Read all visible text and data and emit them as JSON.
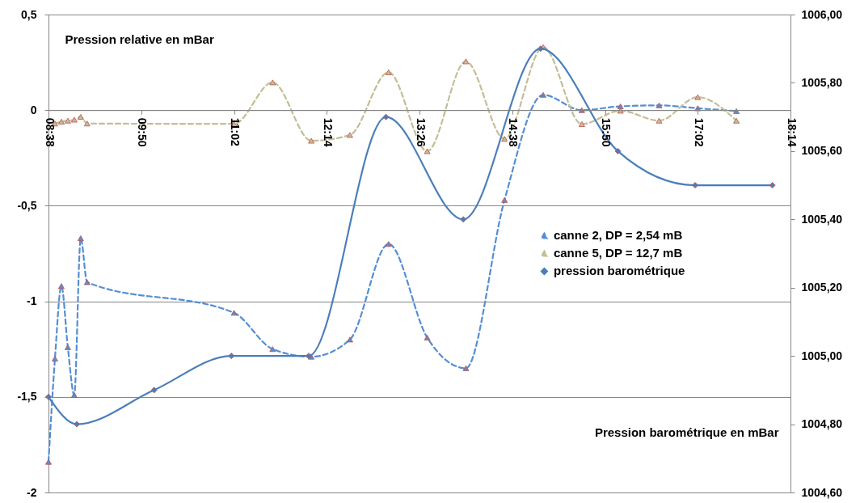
{
  "chart_data": {
    "type": "line",
    "ylabel": "Pression relative en mBar",
    "y2label": "Pression barométrique en mBar",
    "xlim": [
      8.6333,
      18.2333
    ],
    "xticks": [
      {
        "value": 8.6333,
        "label": "08:38"
      },
      {
        "value": 9.8333,
        "label": "09:50"
      },
      {
        "value": 11.0333,
        "label": "11:02"
      },
      {
        "value": 12.2333,
        "label": "12:14"
      },
      {
        "value": 13.4333,
        "label": "13:26"
      },
      {
        "value": 14.6333,
        "label": "14:38"
      },
      {
        "value": 15.8333,
        "label": "15:50"
      },
      {
        "value": 17.0333,
        "label": "17:02"
      },
      {
        "value": 18.2333,
        "label": "18:14"
      }
    ],
    "ylim": [
      -2,
      0.5
    ],
    "yticks": [
      {
        "value": -2,
        "label": "-2"
      },
      {
        "value": -1.5,
        "label": "-1,5"
      },
      {
        "value": -1,
        "label": "-1"
      },
      {
        "value": -0.5,
        "label": "-0,5"
      },
      {
        "value": 0,
        "label": "0"
      },
      {
        "value": 0.5,
        "label": "0,5"
      }
    ],
    "y2lim": [
      1004.6,
      1006.0
    ],
    "y2ticks": [
      {
        "value": 1004.6,
        "label": "1004,60"
      },
      {
        "value": 1004.8,
        "label": "1004,80"
      },
      {
        "value": 1005.0,
        "label": "1005,00"
      },
      {
        "value": 1005.2,
        "label": "1005,20"
      },
      {
        "value": 1005.4,
        "label": "1005,40"
      },
      {
        "value": 1005.6,
        "label": "1005,60"
      },
      {
        "value": 1005.8,
        "label": "1005,80"
      },
      {
        "value": 1006.0,
        "label": "1006,00"
      }
    ],
    "grid": "y",
    "legend": "right",
    "series": [
      {
        "name": "canne 2, DP = 2,54 mB",
        "color": "#558ed5",
        "marker": "triangle",
        "line_style": "dashed",
        "x": [
          8.6333,
          8.7167,
          8.8,
          8.8833,
          8.9667,
          9.05,
          9.1333,
          11.0333,
          11.5333,
          12.0333,
          12.5333,
          13.0333,
          13.5333,
          14.0333,
          14.5333,
          15.0333,
          15.5333,
          16.0333,
          16.5333,
          17.0333,
          17.5333
        ],
        "values": [
          -1.84,
          -1.3,
          -0.92,
          -1.24,
          -1.49,
          -0.67,
          -0.9,
          -1.06,
          -1.25,
          -1.29,
          -1.2,
          -0.7,
          -1.19,
          -1.35,
          -0.47,
          0.08,
          0.0,
          0.02,
          0.025,
          0.01,
          -0.005
        ]
      },
      {
        "name": "canne 5, DP = 12,7 mB",
        "color": "#c4bd97",
        "marker": "triangle",
        "line_style": "dashed",
        "x": [
          8.7167,
          8.8,
          8.8833,
          8.9667,
          9.05,
          9.1333,
          11.0333,
          11.5333,
          12.0333,
          12.5333,
          13.0333,
          13.5333,
          14.0333,
          14.5333,
          15.0333,
          15.5333,
          16.0333,
          16.5333,
          17.0333,
          17.5333
        ],
        "values": [
          -0.07,
          -0.06,
          -0.055,
          -0.05,
          -0.035,
          -0.07,
          -0.072,
          0.145,
          -0.16,
          -0.13,
          0.198,
          -0.215,
          0.255,
          -0.15,
          0.33,
          -0.073,
          -0.003,
          -0.055,
          0.068,
          -0.055
        ]
      },
      {
        "name": "pression barométrique",
        "color": "#4a7ebb",
        "marker": "diamond",
        "line_style": "solid",
        "axis": "y2",
        "x": [
          8.6333,
          9.0,
          10.0,
          11.0,
          12.0,
          13.0,
          14.0,
          15.0,
          16.0,
          17.0,
          18.0
        ],
        "values": [
          1004.88,
          1004.8,
          1004.9,
          1005.0,
          1005.0,
          1005.7,
          1005.4,
          1005.9,
          1005.6,
          1005.5,
          1005.5
        ]
      }
    ]
  }
}
